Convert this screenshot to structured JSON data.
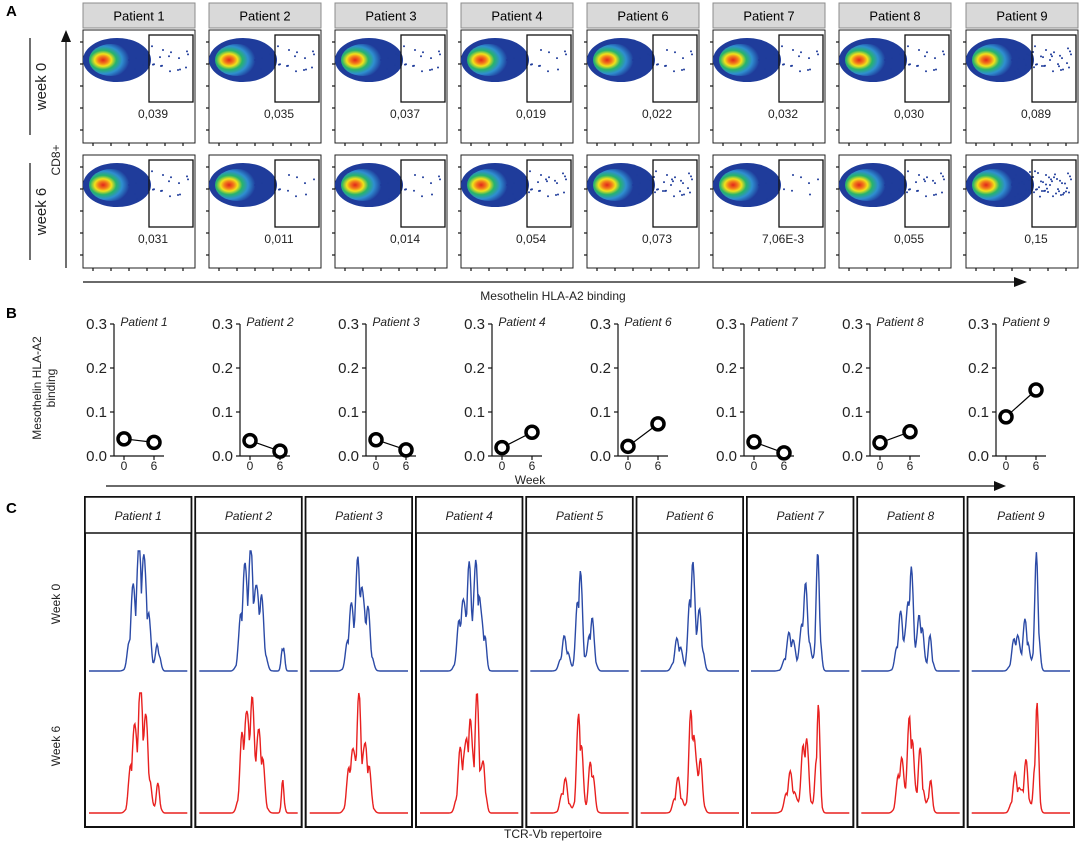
{
  "panels": {
    "a": "A",
    "b": "B",
    "c": "C"
  },
  "panel_a": {
    "patients": [
      "Patient 1",
      "Patient 2",
      "Patient 3",
      "Patient 4",
      "Patient 6",
      "Patient 7",
      "Patient 8",
      "Patient 9"
    ],
    "rows": [
      "week 0",
      "week 6"
    ],
    "gate_values": {
      "week 0": [
        "0,039",
        "0,035",
        "0,037",
        "0,019",
        "0,022",
        "0,032",
        "0,030",
        "0,089"
      ],
      "week 6": [
        "0,031",
        "0,011",
        "0,014",
        "0,054",
        "0,073",
        "7,06E-3",
        "0,055",
        "0,15"
      ]
    },
    "y_axis_label": "CD8+",
    "x_axis_label": "Mesothelin HLA-A2 binding",
    "colors": {
      "density_low": "#1f3c9b",
      "density_mid": "#27b36b",
      "density_high": "#f2e21b",
      "density_peak": "#e0261b"
    }
  },
  "chart_data": {
    "type": "line",
    "patients": [
      "Patient 1",
      "Patient 2",
      "Patient 3",
      "Patient 4",
      "Patient 6",
      "Patient 7",
      "Patient 8",
      "Patient 9"
    ],
    "x": [
      0,
      6
    ],
    "series": [
      {
        "name": "Patient 1",
        "values": [
          0.039,
          0.031
        ]
      },
      {
        "name": "Patient 2",
        "values": [
          0.035,
          0.011
        ]
      },
      {
        "name": "Patient 3",
        "values": [
          0.037,
          0.014
        ]
      },
      {
        "name": "Patient 4",
        "values": [
          0.019,
          0.054
        ]
      },
      {
        "name": "Patient 6",
        "values": [
          0.022,
          0.073
        ]
      },
      {
        "name": "Patient 7",
        "values": [
          0.032,
          0.00706
        ]
      },
      {
        "name": "Patient 8",
        "values": [
          0.03,
          0.055
        ]
      },
      {
        "name": "Patient 9",
        "values": [
          0.089,
          0.15
        ]
      }
    ],
    "xticks": [
      "0",
      "6"
    ],
    "yticks": [
      "0.0",
      "0.1",
      "0.2",
      "0.3"
    ],
    "ylim": [
      0,
      0.3
    ],
    "xlabel": "Week",
    "ylabel": "Mesothelin HLA-A2 binding"
  },
  "panel_c": {
    "patients": [
      "Patient 1",
      "Patient 2",
      "Patient 3",
      "Patient 4",
      "Patient 5",
      "Patient 6",
      "Patient 7",
      "Patient 8",
      "Patient 9"
    ],
    "rows": [
      "Week 0",
      "Week 6"
    ],
    "x_axis_label": "TCR-Vb repertoire",
    "colors": {
      "week0": "#2b4aa6",
      "week6": "#e8201f"
    },
    "peak_sets": [
      [
        [
          0.45,
          0.05,
          0.7
        ],
        [
          0.52,
          0.04,
          0.9
        ],
        [
          0.58,
          0.05,
          0.75
        ],
        [
          0.7,
          0.03,
          0.25
        ]
      ],
      [
        [
          0.45,
          0.05,
          0.8
        ],
        [
          0.53,
          0.05,
          0.95
        ],
        [
          0.62,
          0.05,
          0.7
        ],
        [
          0.85,
          0.02,
          0.3
        ]
      ],
      [
        [
          0.42,
          0.05,
          0.55
        ],
        [
          0.5,
          0.04,
          0.95
        ],
        [
          0.58,
          0.05,
          0.6
        ]
      ],
      [
        [
          0.42,
          0.05,
          0.6
        ],
        [
          0.5,
          0.04,
          0.85
        ],
        [
          0.58,
          0.04,
          1.0
        ],
        [
          0.65,
          0.03,
          0.4
        ]
      ],
      [
        [
          0.35,
          0.05,
          0.3
        ],
        [
          0.5,
          0.04,
          0.95
        ],
        [
          0.62,
          0.04,
          0.5
        ]
      ],
      [
        [
          0.38,
          0.05,
          0.3
        ],
        [
          0.52,
          0.04,
          1.0
        ],
        [
          0.6,
          0.04,
          0.5
        ]
      ],
      [
        [
          0.4,
          0.06,
          0.35
        ],
        [
          0.55,
          0.05,
          0.75
        ],
        [
          0.68,
          0.03,
          1.0
        ]
      ],
      [
        [
          0.4,
          0.05,
          0.5
        ],
        [
          0.5,
          0.04,
          0.95
        ],
        [
          0.6,
          0.04,
          0.55
        ],
        [
          0.7,
          0.03,
          0.3
        ]
      ],
      [
        [
          0.45,
          0.05,
          0.35
        ],
        [
          0.55,
          0.04,
          0.45
        ],
        [
          0.66,
          0.03,
          1.0
        ]
      ]
    ]
  }
}
